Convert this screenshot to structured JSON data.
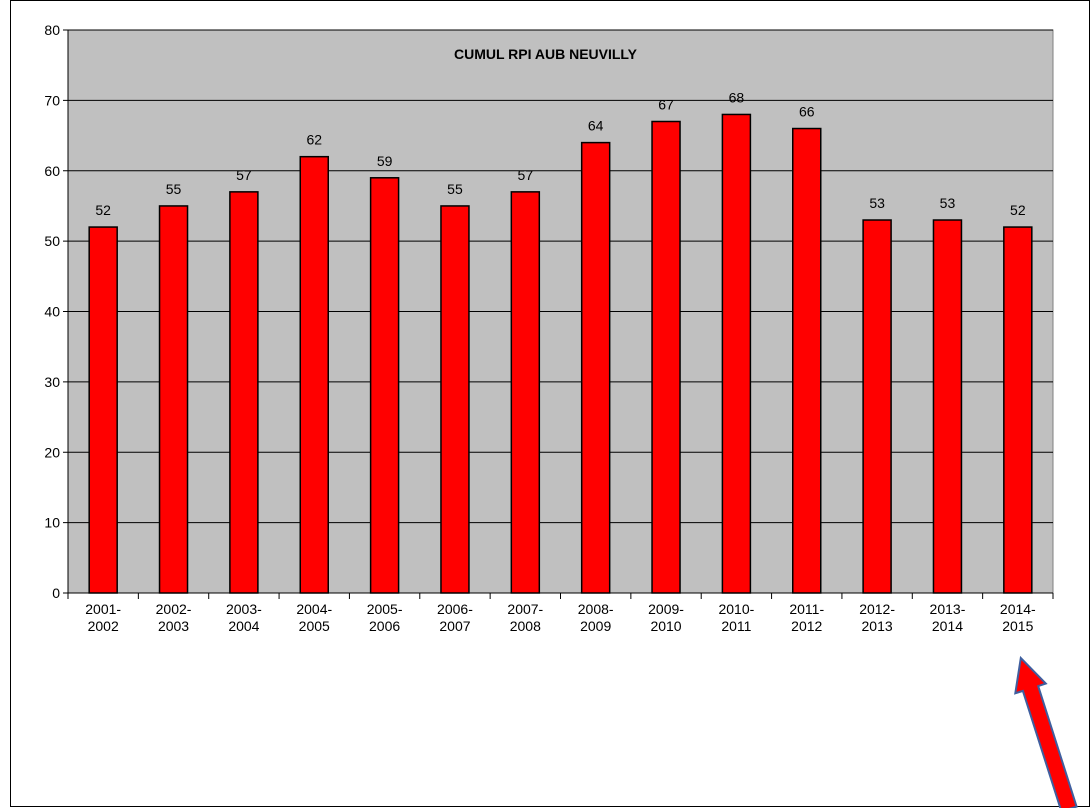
{
  "chart_data": {
    "type": "bar",
    "title": "CUMUL RPI AUB NEUVILLY",
    "categories": [
      [
        "2001-",
        "2002"
      ],
      [
        "2002-",
        "2003"
      ],
      [
        "2003-",
        "2004"
      ],
      [
        "2004-",
        "2005"
      ],
      [
        "2005-",
        "2006"
      ],
      [
        "2006-",
        "2007"
      ],
      [
        "2007-",
        "2008"
      ],
      [
        "2008-",
        "2009"
      ],
      [
        "2009-",
        "2010"
      ],
      [
        "2010-",
        "2011"
      ],
      [
        "2011-",
        "2012"
      ],
      [
        "2012-",
        "2013"
      ],
      [
        "2013-",
        "2014"
      ],
      [
        "2014-",
        "2015"
      ]
    ],
    "values": [
      52,
      55,
      57,
      62,
      59,
      55,
      57,
      64,
      67,
      68,
      66,
      53,
      53,
      52
    ],
    "ylim": [
      0,
      80
    ],
    "yticks": [
      0,
      10,
      20,
      30,
      40,
      50,
      60,
      70,
      80
    ],
    "grid": true,
    "colors": {
      "bar": "#ff0000",
      "plot_bg": "#c0c0c0",
      "arrow": "#ff0000",
      "arrow_outline": "#3f5f9f"
    },
    "annotation": {
      "type": "arrow",
      "points_to_category": "2014-2015"
    }
  }
}
